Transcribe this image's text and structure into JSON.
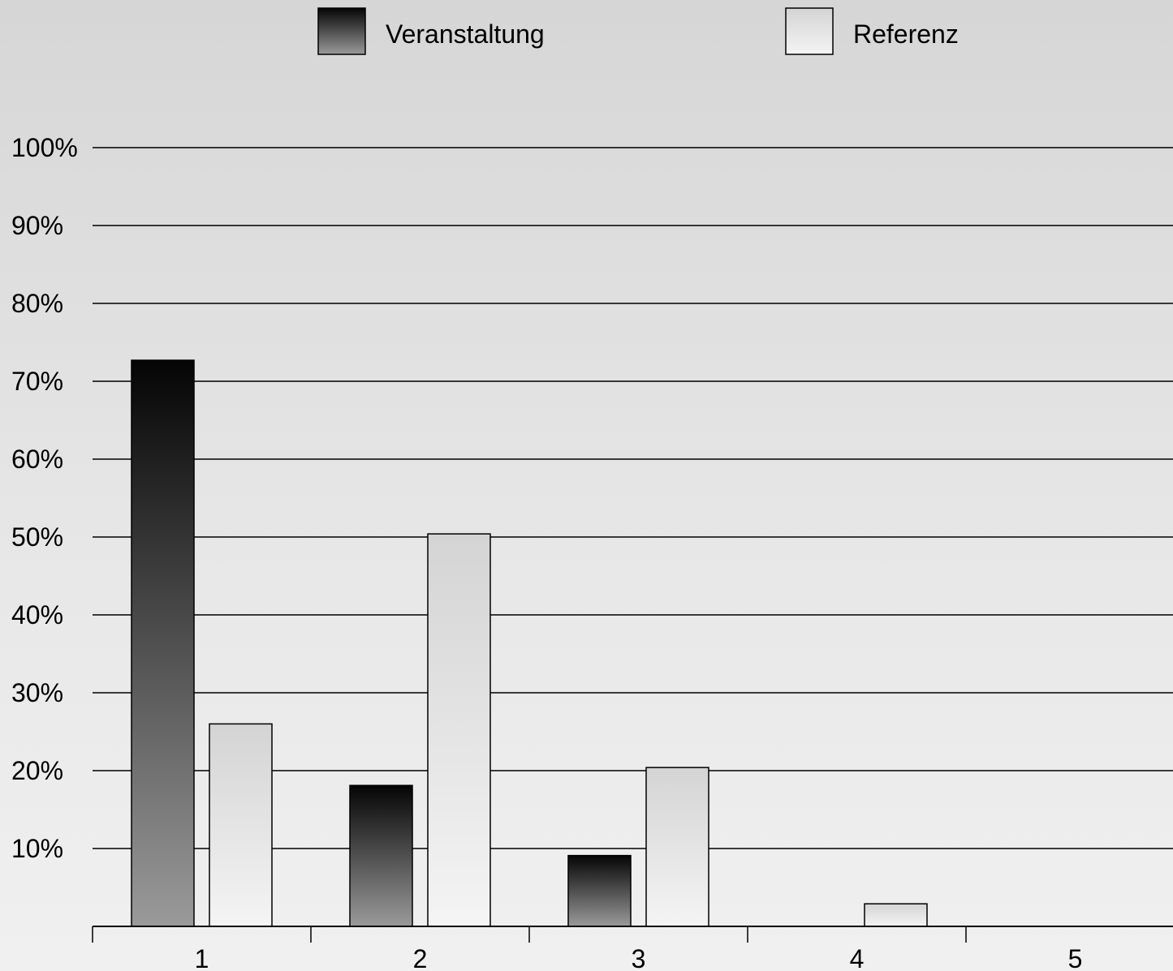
{
  "chart_data": {
    "type": "bar",
    "categories": [
      "1",
      "2",
      "3",
      "4",
      "5"
    ],
    "series": [
      {
        "name": "Veranstaltung",
        "values": [
          72.7,
          18.1,
          9.1,
          0,
          0
        ]
      },
      {
        "name": "Referenz",
        "values": [
          26.0,
          50.4,
          20.4,
          2.9,
          0
        ]
      }
    ],
    "yticks": [
      "10%",
      "20%",
      "30%",
      "40%",
      "50%",
      "60%",
      "70%",
      "80%",
      "90%",
      "100%"
    ],
    "ylim": [
      0,
      100
    ],
    "grid": true,
    "legend_position": "top-center",
    "colors": {
      "veranstaltung_top": "#050505",
      "veranstaltung_bottom": "#9a9a9a",
      "referenz_top": "#d4d4d4",
      "referenz_bottom": "#f4f4f4",
      "grid": "#000000"
    }
  }
}
